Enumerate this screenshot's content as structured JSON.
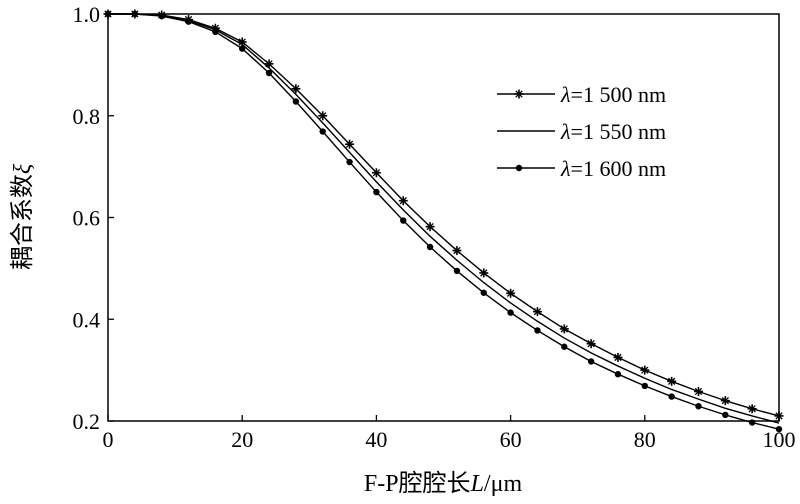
{
  "chart_data": {
    "type": "line",
    "xlabel": "F-P腔腔长L/μm",
    "ylabel": "耦合系数ξ",
    "xlim": [
      0,
      100
    ],
    "ylim": [
      0.2,
      1.0
    ],
    "xticks": [
      0,
      20,
      40,
      60,
      80,
      100
    ],
    "yticks": [
      0.2,
      0.4,
      0.6,
      0.8,
      1.0
    ],
    "xtick_labels": [
      "0",
      "20",
      "40",
      "60",
      "80",
      "100"
    ],
    "ytick_labels": [
      "0.2",
      "0.4",
      "0.6",
      "0.8",
      "1.0"
    ],
    "grid": false,
    "legend_position": "top-right",
    "x": [
      0,
      4,
      8,
      12,
      16,
      20,
      24,
      28,
      32,
      36,
      40,
      44,
      48,
      52,
      56,
      60,
      64,
      68,
      72,
      76,
      80,
      84,
      88,
      92,
      96,
      100
    ],
    "series": [
      {
        "name": "λ=1 500 nm",
        "marker": "star",
        "values": [
          1.0,
          1.0,
          0.998,
          0.989,
          0.972,
          0.945,
          0.902,
          0.853,
          0.8,
          0.744,
          0.688,
          0.633,
          0.582,
          0.535,
          0.491,
          0.451,
          0.415,
          0.381,
          0.352,
          0.325,
          0.3,
          0.278,
          0.258,
          0.24,
          0.224,
          0.21
        ]
      },
      {
        "name": "λ=1 550 nm",
        "marker": "none",
        "values": [
          1.0,
          1.0,
          0.997,
          0.987,
          0.969,
          0.94,
          0.894,
          0.842,
          0.786,
          0.728,
          0.67,
          0.615,
          0.563,
          0.516,
          0.472,
          0.432,
          0.396,
          0.363,
          0.334,
          0.308,
          0.284,
          0.262,
          0.243,
          0.225,
          0.21,
          0.196
        ]
      },
      {
        "name": "λ=1 600 nm",
        "marker": "circle",
        "values": [
          1.0,
          1.0,
          0.996,
          0.985,
          0.965,
          0.932,
          0.884,
          0.828,
          0.769,
          0.709,
          0.65,
          0.594,
          0.542,
          0.495,
          0.452,
          0.413,
          0.378,
          0.346,
          0.317,
          0.292,
          0.269,
          0.248,
          0.229,
          0.212,
          0.197,
          0.184
        ]
      }
    ]
  }
}
